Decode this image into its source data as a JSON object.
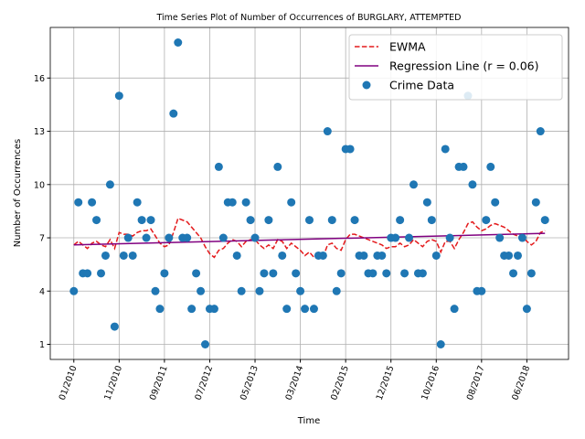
{
  "chart_data": {
    "type": "scatter",
    "title": "Time Series Plot of Number of Occurrences of BURGLARY, ATTEMPTED",
    "xlabel": "Time",
    "ylabel": "Number of Occurrences",
    "x": [
      0,
      1,
      2,
      3,
      4,
      5,
      6,
      7,
      8,
      9,
      10,
      11,
      12,
      13,
      14,
      15,
      16,
      17,
      18,
      19,
      20,
      21,
      22,
      23,
      24,
      25,
      26,
      27,
      28,
      29,
      30,
      31,
      32,
      33,
      34,
      35,
      36,
      37,
      38,
      39,
      40,
      41,
      42,
      43,
      44,
      45,
      46,
      47,
      48,
      49,
      50,
      51,
      52,
      53,
      54,
      55,
      56,
      57,
      58,
      59,
      60,
      61,
      62,
      63,
      64,
      65,
      66,
      67,
      68,
      69,
      70,
      71,
      72,
      73,
      74,
      75,
      76,
      77,
      78,
      79,
      80,
      81,
      82,
      83,
      84,
      85,
      86,
      87,
      88,
      89,
      90,
      91,
      92,
      93,
      94,
      95,
      96,
      97,
      98,
      99,
      100,
      101,
      102,
      103,
      104
    ],
    "series": [
      {
        "name": "EWMA",
        "type": "line",
        "color": "#e41a1c",
        "dashed": true,
        "values": [
          6.6,
          6.8,
          6.6,
          6.4,
          6.7,
          6.8,
          6.6,
          6.5,
          6.9,
          6.4,
          7.3,
          7.2,
          7.2,
          7.1,
          7.3,
          7.4,
          7.4,
          7.5,
          7.1,
          6.7,
          6.5,
          6.6,
          7.3,
          8.1,
          8.0,
          7.9,
          7.6,
          7.3,
          7.0,
          6.5,
          6.1,
          5.9,
          6.3,
          6.4,
          6.7,
          6.9,
          6.8,
          6.5,
          6.8,
          6.9,
          6.9,
          6.6,
          6.4,
          6.6,
          6.4,
          6.9,
          6.8,
          6.4,
          6.7,
          6.5,
          6.3,
          6.0,
          6.2,
          5.9,
          5.9,
          5.9,
          6.6,
          6.7,
          6.4,
          6.3,
          6.9,
          7.2,
          7.2,
          7.1,
          7.0,
          6.9,
          6.8,
          6.7,
          6.6,
          6.4,
          6.5,
          6.5,
          6.7,
          6.5,
          6.6,
          6.9,
          6.7,
          6.5,
          6.8,
          6.9,
          6.8,
          6.2,
          6.8,
          6.8,
          6.4,
          6.9,
          7.3,
          7.8,
          7.9,
          7.6,
          7.4,
          7.5,
          7.7,
          7.8,
          7.7,
          7.6,
          7.4,
          7.2,
          7.1,
          7.1,
          6.8,
          6.6,
          6.8,
          7.3,
          7.4
        ]
      },
      {
        "name": "Regression Line (r = 0.06)",
        "type": "line",
        "color": "#800080",
        "dashed": false,
        "x": [
          0,
          104
        ],
        "values": [
          6.6,
          7.25
        ]
      },
      {
        "name": "Crime Data",
        "type": "scatter",
        "color": "#1f77b4",
        "values": [
          4,
          9,
          5,
          5,
          9,
          8,
          5,
          6,
          10,
          2,
          15,
          6,
          7,
          6,
          9,
          8,
          7,
          8,
          4,
          3,
          5,
          7,
          14,
          18,
          7,
          7,
          3,
          5,
          4,
          1,
          3,
          3,
          11,
          7,
          9,
          9,
          6,
          4,
          9,
          8,
          7,
          4,
          5,
          8,
          5,
          11,
          6,
          3,
          9,
          5,
          4,
          3,
          8,
          3,
          6,
          6,
          13,
          8,
          4,
          5,
          12,
          12,
          8,
          6,
          6,
          5,
          5,
          6,
          6,
          5,
          7,
          7,
          8,
          5,
          7,
          10,
          5,
          5,
          9,
          8,
          6,
          1,
          12,
          7,
          3,
          11,
          11,
          15,
          10,
          4,
          4,
          8,
          11,
          9,
          7,
          6,
          6,
          5,
          6,
          7,
          3,
          5,
          9,
          13,
          8
        ]
      }
    ],
    "xlim": [
      -5.2,
      109.2
    ],
    "ylim": [
      0.15,
      18.85
    ],
    "xticks": [
      {
        "value": 0,
        "label": "01/2010"
      },
      {
        "value": 10,
        "label": "11/2010"
      },
      {
        "value": 20,
        "label": "09/2011"
      },
      {
        "value": 30,
        "label": "07/2012"
      },
      {
        "value": 40,
        "label": "05/2013"
      },
      {
        "value": 50,
        "label": "03/2014"
      },
      {
        "value": 60,
        "label": "02/2015"
      },
      {
        "value": 70,
        "label": "12/2015"
      },
      {
        "value": 80,
        "label": "10/2016"
      },
      {
        "value": 90,
        "label": "08/2017"
      },
      {
        "value": 100,
        "label": "06/2018"
      }
    ],
    "yticks": [
      1,
      4,
      7,
      10,
      13,
      16
    ],
    "grid": true,
    "legend": "upper right"
  }
}
